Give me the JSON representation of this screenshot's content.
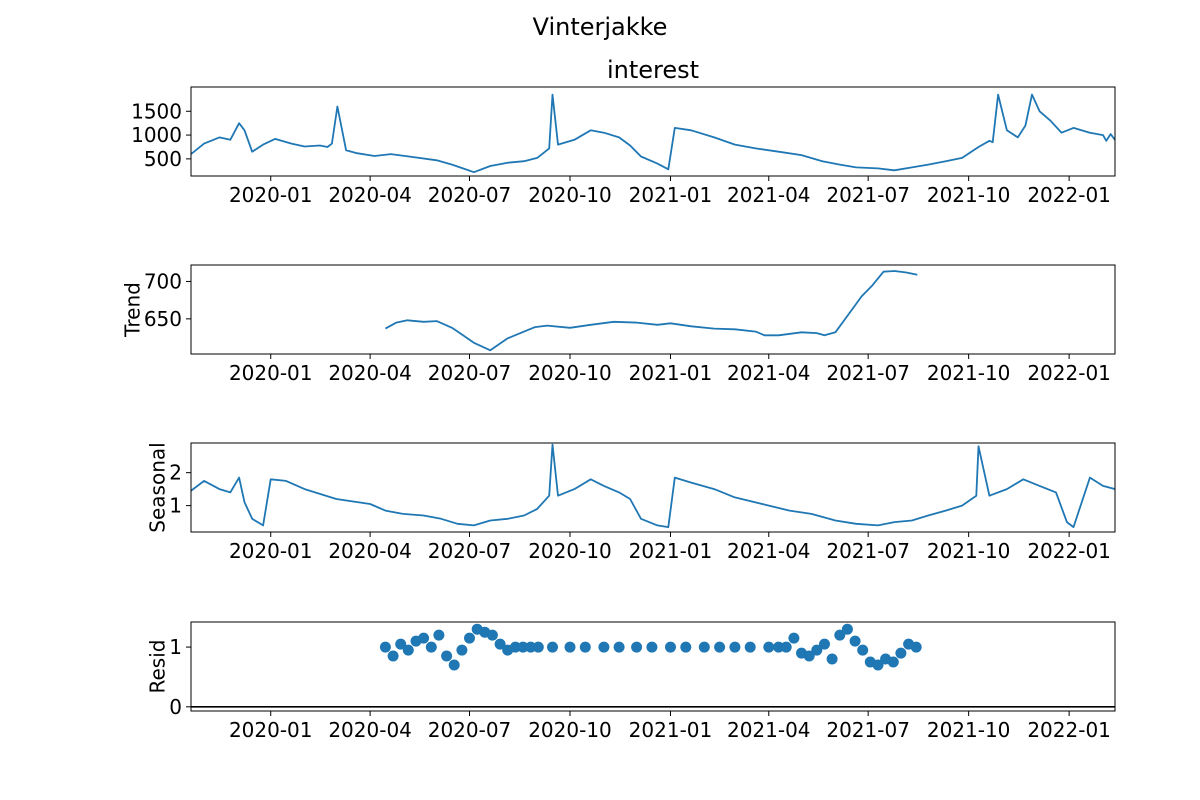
{
  "figure": {
    "suptitle": "Vinterjakke"
  },
  "colors": {
    "series": "#1f77b4",
    "axes": "#000000",
    "background": "#ffffff"
  },
  "chart_data": [
    {
      "type": "line",
      "title": "interest",
      "ylabel": "",
      "xlabel": "",
      "x_range": [
        "2019-10-20",
        "2022-02-12"
      ],
      "ylim": [
        140,
        2010
      ],
      "yticks": [
        500,
        1000,
        1500
      ],
      "xticks": [
        "2020-01",
        "2020-04",
        "2020-07",
        "2020-10",
        "2021-01",
        "2021-04",
        "2021-07",
        "2021-10",
        "2022-01"
      ],
      "grid": false,
      "series": [
        {
          "x": [
            "2019-10-20",
            "2019-11-01",
            "2019-11-15",
            "2019-11-25",
            "2019-12-03",
            "2019-12-08",
            "2019-12-15",
            "2019-12-25",
            "2020-01-05",
            "2020-01-20",
            "2020-02-01",
            "2020-02-15",
            "2020-02-22",
            "2020-02-26",
            "2020-03-02",
            "2020-03-10",
            "2020-03-20",
            "2020-04-05",
            "2020-04-20",
            "2020-05-10",
            "2020-06-01",
            "2020-06-15",
            "2020-06-25",
            "2020-07-05",
            "2020-07-20",
            "2020-08-05",
            "2020-08-20",
            "2020-09-01",
            "2020-09-12",
            "2020-09-15",
            "2020-09-20",
            "2020-10-05",
            "2020-10-20",
            "2020-11-01",
            "2020-11-15",
            "2020-11-25",
            "2020-12-05",
            "2020-12-20",
            "2020-12-30",
            "2021-01-05",
            "2021-01-20",
            "2021-02-10",
            "2021-03-01",
            "2021-03-20",
            "2021-04-10",
            "2021-05-01",
            "2021-05-20",
            "2021-06-05",
            "2021-06-20",
            "2021-07-10",
            "2021-07-25",
            "2021-08-10",
            "2021-08-25",
            "2021-09-10",
            "2021-09-25",
            "2021-10-10",
            "2021-10-20",
            "2021-10-23",
            "2021-10-28",
            "2021-11-05",
            "2021-11-15",
            "2021-11-22",
            "2021-11-28",
            "2021-12-05",
            "2021-12-15",
            "2021-12-25",
            "2022-01-05",
            "2022-01-20",
            "2022-02-01",
            "2022-02-04",
            "2022-02-08",
            "2022-02-12"
          ],
          "values": [
            600,
            820,
            950,
            900,
            1250,
            1100,
            650,
            800,
            920,
            820,
            760,
            780,
            750,
            820,
            1600,
            680,
            620,
            560,
            600,
            540,
            470,
            380,
            300,
            220,
            350,
            420,
            450,
            520,
            720,
            1850,
            800,
            900,
            1100,
            1050,
            950,
            780,
            550,
            400,
            280,
            1150,
            1100,
            950,
            800,
            720,
            650,
            580,
            450,
            380,
            320,
            300,
            260,
            320,
            380,
            450,
            520,
            750,
            880,
            850,
            1850,
            1100,
            950,
            1200,
            1850,
            1500,
            1300,
            1050,
            1150,
            1050,
            1000,
            880,
            1020,
            900
          ]
        }
      ]
    },
    {
      "type": "line",
      "title": "",
      "ylabel": "Trend",
      "xlabel": "",
      "x_range": [
        "2019-10-20",
        "2022-02-12"
      ],
      "ylim": [
        603,
        722
      ],
      "yticks": [
        650,
        700
      ],
      "xticks": [
        "2020-01",
        "2020-04",
        "2020-07",
        "2020-10",
        "2021-01",
        "2021-04",
        "2021-07",
        "2021-10",
        "2022-01"
      ],
      "grid": false,
      "series": [
        {
          "x": [
            "2020-04-15",
            "2020-04-25",
            "2020-05-05",
            "2020-05-20",
            "2020-06-01",
            "2020-06-15",
            "2020-06-25",
            "2020-07-05",
            "2020-07-20",
            "2020-08-05",
            "2020-08-20",
            "2020-08-30",
            "2020-09-10",
            "2020-10-01",
            "2020-10-20",
            "2020-11-10",
            "2020-12-01",
            "2020-12-20",
            "2021-01-01",
            "2021-01-20",
            "2021-02-10",
            "2021-03-01",
            "2021-03-20",
            "2021-03-28",
            "2021-04-10",
            "2021-05-01",
            "2021-05-15",
            "2021-05-22",
            "2021-06-01",
            "2021-06-15",
            "2021-06-25",
            "2021-07-05",
            "2021-07-15",
            "2021-07-25",
            "2021-08-05",
            "2021-08-15"
          ],
          "values": [
            637,
            645,
            648,
            646,
            647,
            638,
            628,
            618,
            608,
            624,
            633,
            639,
            641,
            638,
            642,
            646,
            645,
            642,
            644,
            640,
            637,
            636,
            633,
            628,
            628,
            632,
            631,
            628,
            632,
            660,
            680,
            695,
            713,
            714,
            712,
            709
          ]
        }
      ]
    },
    {
      "type": "line",
      "title": "",
      "ylabel": "Seasonal",
      "xlabel": "",
      "x_range": [
        "2019-10-20",
        "2022-02-12"
      ],
      "ylim": [
        0.2,
        2.9
      ],
      "yticks": [
        1,
        2
      ],
      "xticks": [
        "2020-01",
        "2020-04",
        "2020-07",
        "2020-10",
        "2021-01",
        "2021-04",
        "2021-07",
        "2021-10",
        "2022-01"
      ],
      "grid": false,
      "series": [
        {
          "x": [
            "2019-10-20",
            "2019-11-01",
            "2019-11-15",
            "2019-11-25",
            "2019-12-03",
            "2019-12-08",
            "2019-12-15",
            "2019-12-25",
            "2020-01-01",
            "2020-01-15",
            "2020-02-01",
            "2020-03-01",
            "2020-04-01",
            "2020-04-15",
            "2020-05-01",
            "2020-05-20",
            "2020-06-05",
            "2020-06-20",
            "2020-07-05",
            "2020-07-20",
            "2020-08-05",
            "2020-08-20",
            "2020-09-01",
            "2020-09-12",
            "2020-09-15",
            "2020-09-20",
            "2020-10-05",
            "2020-10-20",
            "2020-11-01",
            "2020-11-15",
            "2020-11-25",
            "2020-12-05",
            "2020-12-20",
            "2020-12-30",
            "2021-01-05",
            "2021-01-20",
            "2021-02-10",
            "2021-03-01",
            "2021-04-01",
            "2021-04-20",
            "2021-05-10",
            "2021-06-01",
            "2021-06-20",
            "2021-07-10",
            "2021-07-25",
            "2021-08-10",
            "2021-08-25",
            "2021-09-10",
            "2021-09-25",
            "2021-10-08",
            "2021-10-10",
            "2021-10-20",
            "2021-11-05",
            "2021-11-20",
            "2021-12-05",
            "2021-12-20",
            "2021-12-30",
            "2022-01-05",
            "2022-01-20",
            "2022-02-01",
            "2022-02-12"
          ],
          "values": [
            1.45,
            1.75,
            1.5,
            1.4,
            1.85,
            1.1,
            0.6,
            0.4,
            1.8,
            1.75,
            1.5,
            1.2,
            1.05,
            0.85,
            0.75,
            0.7,
            0.6,
            0.45,
            0.4,
            0.55,
            0.6,
            0.7,
            0.9,
            1.3,
            2.85,
            1.3,
            1.5,
            1.8,
            1.6,
            1.4,
            1.2,
            0.6,
            0.4,
            0.35,
            1.85,
            1.7,
            1.5,
            1.25,
            1.0,
            0.85,
            0.75,
            0.55,
            0.45,
            0.4,
            0.5,
            0.55,
            0.7,
            0.85,
            1.0,
            1.3,
            2.8,
            1.3,
            1.5,
            1.8,
            1.6,
            1.4,
            0.5,
            0.35,
            1.85,
            1.6,
            1.5
          ]
        }
      ]
    },
    {
      "type": "scatter",
      "title": "",
      "ylabel": "Resid",
      "xlabel": "",
      "x_range": [
        "2019-10-20",
        "2022-02-12"
      ],
      "ylim": [
        -0.07,
        1.42
      ],
      "yticks": [
        0,
        1
      ],
      "xticks": [
        "2020-01",
        "2020-04",
        "2020-07",
        "2020-10",
        "2021-01",
        "2021-04",
        "2021-07",
        "2021-10",
        "2022-01"
      ],
      "grid": false,
      "baseline": 0,
      "series": [
        {
          "x": [
            "2020-04-15",
            "2020-04-22",
            "2020-04-29",
            "2020-05-06",
            "2020-05-13",
            "2020-05-20",
            "2020-05-27",
            "2020-06-03",
            "2020-06-10",
            "2020-06-17",
            "2020-06-24",
            "2020-07-01",
            "2020-07-08",
            "2020-07-15",
            "2020-07-22",
            "2020-07-29",
            "2020-08-05",
            "2020-08-12",
            "2020-08-19",
            "2020-08-26",
            "2020-09-02",
            "2020-09-15",
            "2020-10-01",
            "2020-10-15",
            "2020-11-01",
            "2020-11-15",
            "2020-12-01",
            "2020-12-15",
            "2021-01-01",
            "2021-01-15",
            "2021-02-01",
            "2021-02-15",
            "2021-03-01",
            "2021-03-15",
            "2021-04-01",
            "2021-04-10",
            "2021-04-17",
            "2021-04-24",
            "2021-05-01",
            "2021-05-08",
            "2021-05-15",
            "2021-05-22",
            "2021-05-29",
            "2021-06-05",
            "2021-06-12",
            "2021-06-19",
            "2021-06-26",
            "2021-07-03",
            "2021-07-10",
            "2021-07-17",
            "2021-07-24",
            "2021-07-31",
            "2021-08-07",
            "2021-08-14"
          ],
          "values": [
            1.0,
            0.85,
            1.05,
            0.95,
            1.1,
            1.15,
            1.0,
            1.2,
            0.85,
            0.7,
            0.95,
            1.15,
            1.3,
            1.25,
            1.2,
            1.05,
            0.95,
            1.0,
            1.0,
            1.0,
            1.0,
            1.0,
            1.0,
            1.0,
            1.0,
            1.0,
            1.0,
            1.0,
            1.0,
            1.0,
            1.0,
            1.0,
            1.0,
            1.0,
            1.0,
            1.0,
            1.0,
            1.15,
            0.9,
            0.85,
            0.95,
            1.05,
            0.8,
            1.2,
            1.3,
            1.1,
            0.95,
            0.75,
            0.7,
            0.8,
            0.75,
            0.9,
            1.05,
            1.0
          ]
        }
      ]
    }
  ]
}
